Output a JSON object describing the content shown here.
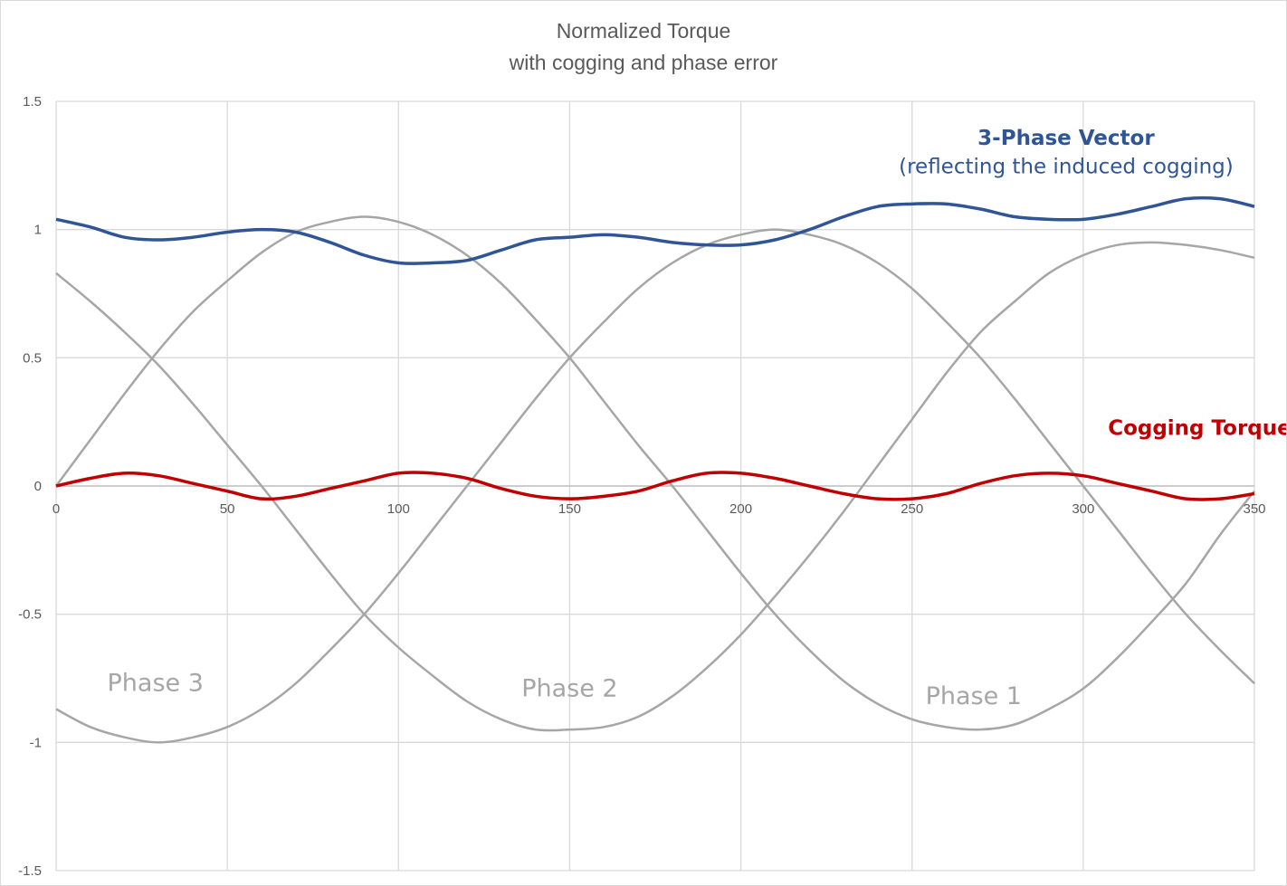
{
  "chart_data": {
    "type": "line",
    "title": "Normalized Torque",
    "subtitle": "with cogging and phase error",
    "xlabel": "",
    "ylabel": "",
    "xlim": [
      0,
      350
    ],
    "ylim": [
      -1.5,
      1.5
    ],
    "x_ticks": [
      "0",
      "50",
      "100",
      "150",
      "200",
      "250",
      "300",
      "350"
    ],
    "y_ticks": [
      "1.5",
      "1",
      "0.5",
      "0",
      "-0.5",
      "-1",
      "-1.5"
    ],
    "grid": true,
    "legend": "none",
    "x": [
      0,
      10,
      20,
      30,
      40,
      50,
      60,
      70,
      80,
      90,
      100,
      110,
      120,
      130,
      140,
      150,
      160,
      170,
      180,
      190,
      200,
      210,
      220,
      230,
      240,
      250,
      260,
      270,
      280,
      290,
      300,
      310,
      320,
      330,
      340,
      350
    ],
    "series": [
      {
        "name": "3-Phase Vector",
        "color": "#2f5597",
        "values": [
          1.04,
          1.01,
          0.97,
          0.96,
          0.97,
          0.99,
          1.0,
          0.99,
          0.95,
          0.9,
          0.87,
          0.87,
          0.88,
          0.92,
          0.96,
          0.97,
          0.98,
          0.97,
          0.95,
          0.94,
          0.94,
          0.96,
          1.0,
          1.05,
          1.09,
          1.1,
          1.1,
          1.08,
          1.05,
          1.04,
          1.04,
          1.06,
          1.09,
          1.12,
          1.12,
          1.09
        ]
      },
      {
        "name": "Cogging Torque",
        "color": "#c00000",
        "values": [
          0.0,
          0.03,
          0.05,
          0.04,
          0.01,
          -0.02,
          -0.05,
          -0.04,
          -0.01,
          0.02,
          0.05,
          0.05,
          0.03,
          -0.01,
          -0.04,
          -0.05,
          -0.04,
          -0.02,
          0.02,
          0.05,
          0.05,
          0.03,
          0.0,
          -0.03,
          -0.05,
          -0.05,
          -0.03,
          0.01,
          0.04,
          0.05,
          0.04,
          0.01,
          -0.02,
          -0.05,
          -0.05,
          -0.03
        ]
      },
      {
        "name": "Phase 1",
        "color": "#a6a6a6",
        "values": [
          -0.87,
          -0.94,
          -0.98,
          -1.0,
          -0.98,
          -0.94,
          -0.87,
          -0.77,
          -0.64,
          -0.5,
          -0.34,
          -0.17,
          0.0,
          0.17,
          0.34,
          0.5,
          0.64,
          0.77,
          0.87,
          0.94,
          0.98,
          1.0,
          0.98,
          0.94,
          0.87,
          0.77,
          0.64,
          0.5,
          0.34,
          0.17,
          0.0,
          -0.17,
          -0.34,
          -0.5,
          -0.64,
          -0.77
        ]
      },
      {
        "name": "Phase 2",
        "color": "#a6a6a6",
        "values": [
          0.0,
          0.18,
          0.36,
          0.53,
          0.68,
          0.8,
          0.91,
          0.99,
          1.03,
          1.05,
          1.03,
          0.98,
          0.9,
          0.79,
          0.65,
          0.5,
          0.33,
          0.16,
          0.0,
          -0.17,
          -0.34,
          -0.5,
          -0.64,
          -0.76,
          -0.85,
          -0.91,
          -0.94,
          -0.95,
          -0.93,
          -0.87,
          -0.79,
          -0.67,
          -0.53,
          -0.38,
          -0.19,
          -0.02
        ]
      },
      {
        "name": "Phase 3",
        "color": "#a6a6a6",
        "values": [
          0.83,
          0.72,
          0.6,
          0.47,
          0.32,
          0.16,
          0.0,
          -0.17,
          -0.34,
          -0.5,
          -0.63,
          -0.74,
          -0.84,
          -0.91,
          -0.95,
          -0.95,
          -0.94,
          -0.9,
          -0.82,
          -0.71,
          -0.58,
          -0.43,
          -0.27,
          -0.1,
          0.08,
          0.26,
          0.44,
          0.6,
          0.72,
          0.83,
          0.9,
          0.94,
          0.95,
          0.94,
          0.92,
          0.89
        ]
      }
    ],
    "annotations": [
      {
        "text": "3-Phase Vector",
        "color": "#2f5597",
        "x": 295,
        "y": 1.33,
        "bold": true
      },
      {
        "text": "(reflecting the induced cogging)",
        "color": "#2f5597",
        "x": 295,
        "y": 1.22,
        "bold": false
      },
      {
        "text": "Cogging Torque",
        "color": "#c00000",
        "x": 334,
        "y": 0.2,
        "bold": true
      },
      {
        "text": "Phase 3",
        "color": "#a6a6a6",
        "x": 29,
        "y": -0.8,
        "bold": false
      },
      {
        "text": "Phase 2",
        "color": "#a6a6a6",
        "x": 150,
        "y": -0.82,
        "bold": false
      },
      {
        "text": "Phase 1",
        "color": "#a6a6a6",
        "x": 268,
        "y": -0.85,
        "bold": false
      }
    ]
  }
}
